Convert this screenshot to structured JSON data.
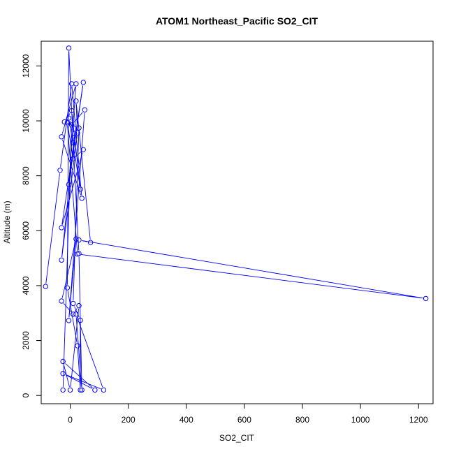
{
  "chart_data": {
    "type": "line",
    "title": "ATOM1 Northeast_Pacific SO2_CIT",
    "xlabel": "SO2_CIT",
    "ylabel": "Altitude (m)",
    "xlim": [
      -100,
      1250
    ],
    "ylim": [
      -300,
      12900
    ],
    "xticks": [
      0,
      200,
      400,
      600,
      800,
      1000,
      1200
    ],
    "yticks": [
      0,
      2000,
      4000,
      6000,
      8000,
      10000,
      12000
    ],
    "grid": false,
    "legend": "none",
    "color": "#0000ff",
    "markers": "open-circle",
    "series": [
      {
        "x": [
          -85,
          -35,
          5,
          40,
          -30,
          20,
          -5,
          45,
          -30,
          45,
          10,
          -10,
          25,
          1225,
          30,
          70,
          20,
          25,
          -30,
          15,
          -5,
          35,
          5,
          -20,
          30,
          10,
          35,
          35,
          25,
          -10,
          -5,
          10,
          30,
          40,
          20,
          115,
          -25,
          85,
          -25,
          0,
          30,
          10,
          -30,
          20,
          -5,
          50,
          5,
          -25
        ],
        "y": [
          3970,
          8200,
          11350,
          7180,
          9420,
          11350,
          7680,
          11400,
          6110,
          8950,
          8620,
          9930,
          5150,
          3530,
          5660,
          5570,
          10720,
          9560,
          4930,
          9540,
          10100,
          7510,
          10370,
          9960,
          9740,
          3350,
          2740,
          200,
          1810,
          3920,
          12650,
          9200,
          5170,
          200,
          2960,
          200,
          800,
          200,
          1240,
          200,
          3270,
          2960,
          3440,
          5700,
          2730,
          10400,
          9850,
          200
        ]
      }
    ]
  }
}
